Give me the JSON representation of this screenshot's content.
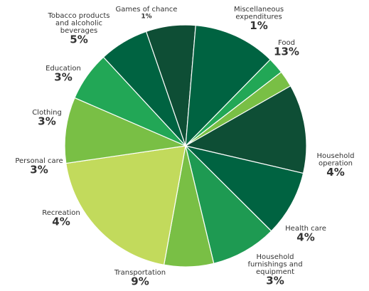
{
  "chart_data": {
    "type": "pie",
    "slices": [
      {
        "label": [
          "Food"
        ],
        "value_label": "13%",
        "value": 13,
        "color": "#0e4e35"
      },
      {
        "label": [
          "Household",
          "operation"
        ],
        "value_label": "4%",
        "value": 4,
        "color": "#006341"
      },
      {
        "label": [
          "Health care"
        ],
        "value_label": "4%",
        "value": 4,
        "color": "#1e9a52"
      },
      {
        "label": [
          "Household",
          "furnishings and",
          "equipment"
        ],
        "value_label": "3%",
        "value": 3,
        "color": "#79bf45"
      },
      {
        "label": [
          "Transportation"
        ],
        "value_label": "9%",
        "value": 9,
        "color": "#c2da5c"
      },
      {
        "label": [
          "Recreation"
        ],
        "value_label": "4%",
        "value": 4,
        "color": "#79bf45"
      },
      {
        "label": [
          "Personal care"
        ],
        "value_label": "3%",
        "value": 3,
        "color": "#22a756"
      },
      {
        "label": [
          "Clothing"
        ],
        "value_label": "3%",
        "value": 3,
        "color": "#006341"
      },
      {
        "label": [
          "Education"
        ],
        "value_label": "3%",
        "value": 3,
        "color": "#0e4e35"
      },
      {
        "label": [
          "Tobacco products",
          "and alcoholic",
          "beverages"
        ],
        "value_label": "5%",
        "value": 5,
        "color": "#006341"
      },
      {
        "label": [
          "Games of chance"
        ],
        "value_label": "1%",
        "value": 1,
        "color": "#22a756"
      },
      {
        "label": [
          "Miscellaneous",
          "expenditures"
        ],
        "value_label": "1%",
        "value": 1,
        "color": "#79bf45"
      }
    ]
  }
}
